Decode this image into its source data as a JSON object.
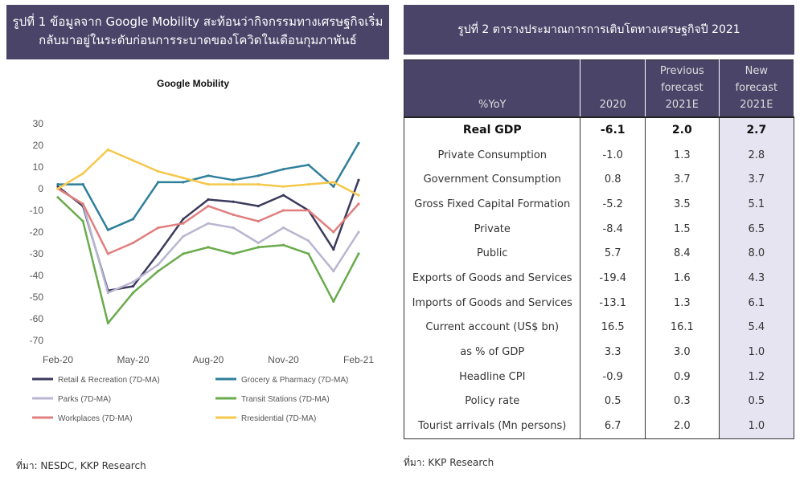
{
  "left_panel": {
    "header": "รูปที่ 1 ข้อมูลจาก Google Mobility สะท้อนว่ากิจกรรมทางเศรษฐกิจเริ่ม กลับมาอยู่ในระดับก่อนการระบาดของโควิดในเดือนกุมภาพันธ์",
    "source": "ที่มา: NESDC, KKP Research"
  },
  "right_panel": {
    "header": "รูปที่ 2 ตารางประมาณการการเติบโตทางเศรษฐกิจปี 2021",
    "source": "ที่มา: KKP Research",
    "table": {
      "headers": [
        "%YoY",
        "2020",
        "Previous forecast 2021E",
        "New forecast 2021E"
      ],
      "rows": [
        {
          "label": "Real GDP",
          "v2020": "-6.1",
          "prev": "2.0",
          "new": "2.7"
        },
        {
          "label": "Private Consumption",
          "v2020": "-1.0",
          "prev": "1.3",
          "new": "2.8"
        },
        {
          "label": "Government Consumption",
          "v2020": "0.8",
          "prev": "3.7",
          "new": "3.7"
        },
        {
          "label": "Gross Fixed Capital Formation",
          "v2020": "-5.2",
          "prev": "3.5",
          "new": "5.1"
        },
        {
          "label": "Private",
          "v2020": "-8.4",
          "prev": "1.5",
          "new": "6.5"
        },
        {
          "label": "Public",
          "v2020": "5.7",
          "prev": "8.4",
          "new": "8.0"
        },
        {
          "label": "Exports of Goods and Services",
          "v2020": "-19.4",
          "prev": "1.6",
          "new": "4.3"
        },
        {
          "label": "Imports of Goods and Services",
          "v2020": "-13.1",
          "prev": "1.3",
          "new": "6.1"
        },
        {
          "label": "Current account (US$ bn)",
          "v2020": "16.5",
          "prev": "16.1",
          "new": "5.4"
        },
        {
          "label": "as % of GDP",
          "v2020": "3.3",
          "prev": "3.0",
          "new": "1.0"
        },
        {
          "label": "Headline CPI",
          "v2020": "-0.9",
          "prev": "0.9",
          "new": "1.2"
        },
        {
          "label": "Policy rate",
          "v2020": "0.5",
          "prev": "0.3",
          "new": "0.5"
        },
        {
          "label": "Tourist arrivals (Mn persons)",
          "v2020": "6.7",
          "prev": "2.0",
          "new": "1.0"
        }
      ]
    }
  },
  "chart_data": {
    "type": "line",
    "title": "Google Mobility",
    "xlabel": "",
    "ylabel": "",
    "ylim": [
      -70,
      30
    ],
    "yticks": [
      30,
      20,
      10,
      0,
      -10,
      -20,
      -30,
      -40,
      -50,
      -60,
      -70
    ],
    "xticks": [
      "Feb-20",
      "May-20",
      "Aug-20",
      "Nov-20",
      "Feb-21"
    ],
    "grid": false,
    "legend_position": "bottom",
    "x": [
      "Feb-20",
      "Mar-20",
      "Apr-20",
      "May-20",
      "Jun-20",
      "Jul-20",
      "Aug-20",
      "Sep-20",
      "Oct-20",
      "Nov-20",
      "Dec-20",
      "Jan-21",
      "Feb-21"
    ],
    "series": [
      {
        "name": "Retail & Recreation (7D-MA)",
        "color": "#3b3a5c",
        "values": [
          1,
          -8,
          -47,
          -45,
          -30,
          -14,
          -5,
          -6,
          -8,
          -3,
          -10,
          -28,
          4
        ]
      },
      {
        "name": "Grocery & Pharmacy (7D-MA)",
        "color": "#2f7f9b",
        "values": [
          2,
          2,
          -19,
          -14,
          3,
          3,
          6,
          4,
          6,
          9,
          11,
          1,
          21
        ]
      },
      {
        "name": "Parks (7D-MA)",
        "color": "#b8b6d0",
        "values": [
          0,
          -7,
          -48,
          -43,
          -35,
          -22,
          -16,
          -18,
          -25,
          -18,
          -24,
          -38,
          -20
        ]
      },
      {
        "name": "Transit Stations (7D-MA)",
        "color": "#6aab4c",
        "values": [
          -4,
          -15,
          -62,
          -48,
          -38,
          -30,
          -27,
          -30,
          -27,
          -26,
          -30,
          -52,
          -30
        ]
      },
      {
        "name": "Workplaces (7D-MA)",
        "color": "#e07f7f",
        "values": [
          0,
          -7,
          -30,
          -25,
          -18,
          -16,
          -8,
          -12,
          -15,
          -10,
          -10,
          -20,
          -7
        ]
      },
      {
        "name": "Rresidential (7D-MA)",
        "color": "#f5c84a",
        "values": [
          0,
          7,
          18,
          13,
          8,
          5,
          2,
          2,
          2,
          1,
          2,
          3,
          -3
        ]
      }
    ]
  }
}
